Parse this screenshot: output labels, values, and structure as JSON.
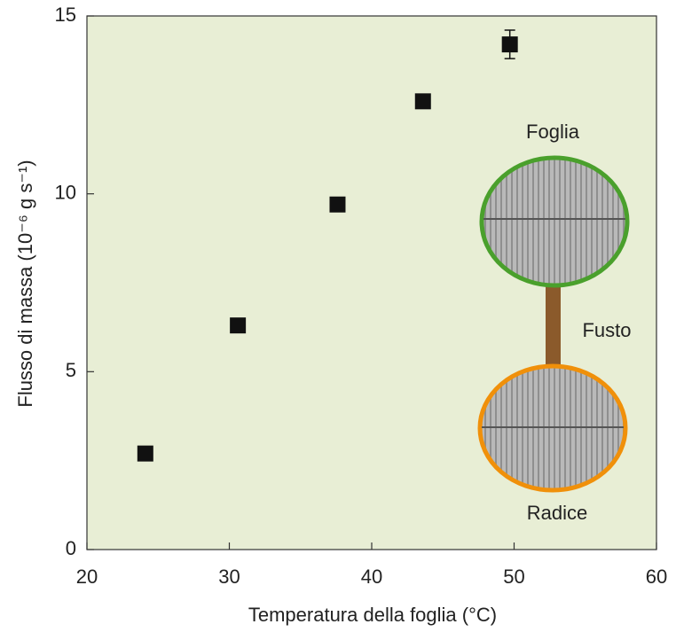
{
  "chart_data": {
    "type": "scatter",
    "x_label": "Temperatura della foglia (°C)",
    "y_label": "Flusso di massa (10⁻⁶ g s⁻¹)",
    "x": [
      24.1,
      30.6,
      37.6,
      43.6,
      49.7
    ],
    "values": [
      2.7,
      6.3,
      9.7,
      12.6,
      14.2
    ],
    "errors": [
      null,
      null,
      null,
      null,
      0.4
    ],
    "color": "#111111",
    "background": "#e8eed5",
    "xlim": [
      20,
      60
    ],
    "xticks": [
      20,
      30,
      40,
      50,
      60
    ],
    "ylim": [
      0,
      15
    ],
    "yticks": [
      0,
      5,
      10,
      15
    ],
    "annotations": [
      "Foglia",
      "Fusto",
      "Radice"
    ]
  }
}
